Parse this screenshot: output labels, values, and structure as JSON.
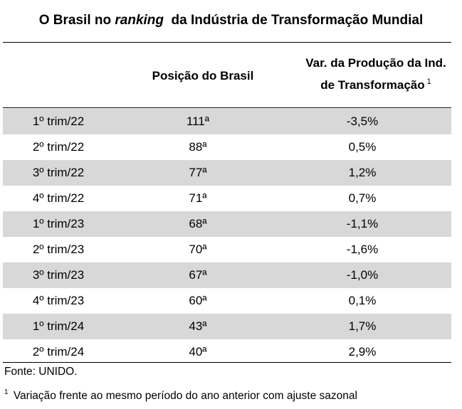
{
  "title": {
    "part1": "O Brasil no ",
    "part2": "ranking",
    "part3": "  da Indústria de Transformação Mundial"
  },
  "table": {
    "headers": {
      "position": "Posição do Brasil",
      "variation_line1": "Var. da Produção da Ind.",
      "variation_line2": "de Transformação",
      "variation_footnote_mark": "1"
    },
    "rows": [
      {
        "period": "1º trim/22",
        "position": "111ª",
        "variation": "-3,5%"
      },
      {
        "period": "2º trim/22",
        "position": "88ª",
        "variation": "0,5%"
      },
      {
        "period": "3º trim/22",
        "position": "77ª",
        "variation": "1,2%"
      },
      {
        "period": "4º trim/22",
        "position": "71ª",
        "variation": "0,7%"
      },
      {
        "period": "1º trim/23",
        "position": "68ª",
        "variation": "-1,1%"
      },
      {
        "period": "2º trim/23",
        "position": "70ª",
        "variation": "-1,6%"
      },
      {
        "period": "3º trim/23",
        "position": "67ª",
        "variation": "-1,0%"
      },
      {
        "period": "4º trim/23",
        "position": "60ª",
        "variation": "0,1%"
      },
      {
        "period": "1º trim/24",
        "position": "43ª",
        "variation": "1,7%"
      },
      {
        "period": "2º trim/24",
        "position": "40ª",
        "variation": "2,9%"
      }
    ]
  },
  "source": "Fonte: UNIDO.",
  "footnote": {
    "mark": "1",
    "text": " Variação frente ao mesmo período do ano anterior com ajuste sazonal"
  },
  "colors": {
    "shaded_row": "#d8d8d8",
    "background": "#ffffff",
    "text": "#000000"
  }
}
